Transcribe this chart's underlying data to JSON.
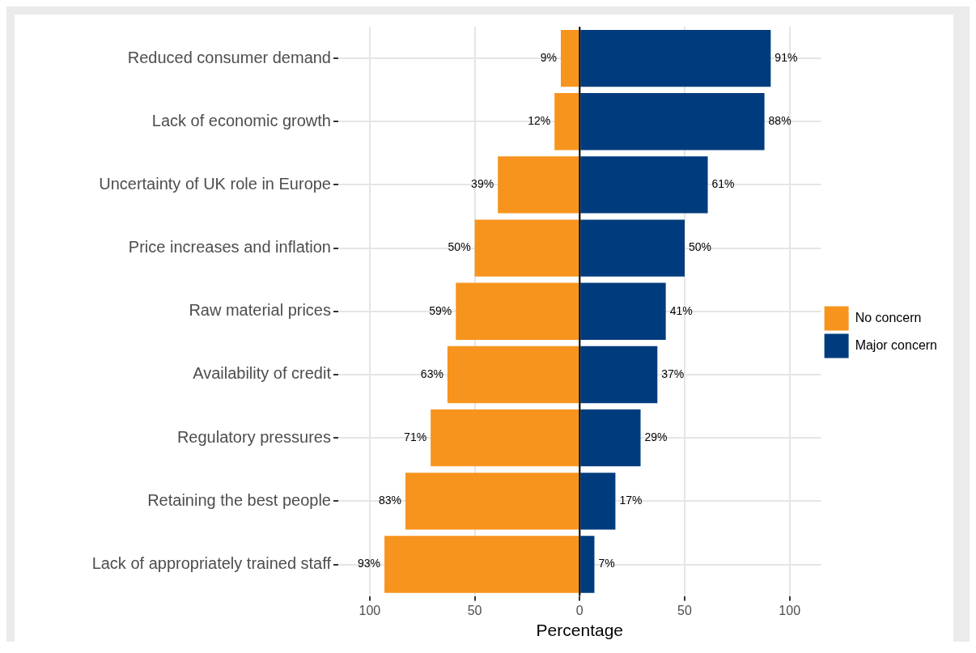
{
  "chart_data": {
    "type": "bar",
    "orientation": "horizontal",
    "categories": [
      "Reduced consumer demand",
      "Lack of economic growth",
      "Uncertainty of UK role in Europe",
      "Price increases and inflation",
      "Raw material prices",
      "Availability of credit",
      "Regulatory pressures",
      "Retaining the best people",
      "Lack of appropriately trained staff"
    ],
    "series": [
      {
        "name": "No concern",
        "color": "#f7941d",
        "values": [
          9,
          12,
          39,
          50,
          59,
          63,
          71,
          83,
          93
        ],
        "base": [
          -9,
          -12,
          -39,
          -50,
          -59,
          -63,
          -71,
          -83,
          -93
        ],
        "value_labels": [
          "9%",
          "12%",
          "39%",
          "50%",
          "59%",
          "63%",
          "71%",
          "83%",
          "93%"
        ]
      },
      {
        "name": "Major concern",
        "color": "#003c7d",
        "values": [
          91,
          88,
          61,
          50,
          41,
          37,
          29,
          17,
          7
        ],
        "value_labels": [
          "91%",
          "88%",
          "61%",
          "50%",
          "41%",
          "37%",
          "29%",
          "17%",
          "7%"
        ]
      }
    ],
    "xlabel": "Percentage",
    "xlim": [
      -115,
      115
    ],
    "xticks": [
      {
        "value": -100,
        "label": "100"
      },
      {
        "value": -50,
        "label": "50"
      },
      0,
      50,
      100
    ],
    "ref_lines": [
      {
        "axis": "x",
        "value": 0,
        "color": "#000000"
      }
    ],
    "grid": true,
    "legend": "right"
  }
}
